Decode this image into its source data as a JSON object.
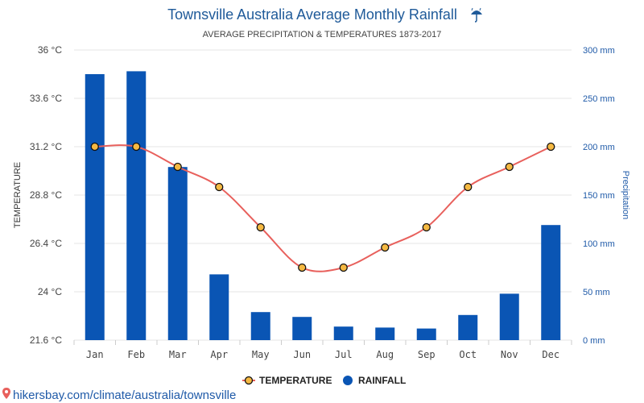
{
  "chart_data": {
    "type": "bar",
    "title": "Townsville Australia Average Monthly Rainfall",
    "title_icon": "umbrella-icon",
    "subtitle": "AVERAGE PRECIPITATION & TEMPERATURES 1873-2017",
    "categories": [
      "Jan",
      "Feb",
      "Mar",
      "Apr",
      "May",
      "Jun",
      "Jul",
      "Aug",
      "Sep",
      "Oct",
      "Nov",
      "Dec"
    ],
    "series": [
      {
        "name": "TEMPERATURE",
        "type": "line",
        "axis": "left",
        "color": "#e8605c",
        "marker_fill": "#f5b942",
        "values": [
          31.2,
          31.2,
          30.2,
          29.2,
          27.2,
          25.2,
          25.2,
          26.2,
          27.2,
          29.2,
          30.2,
          31.2
        ]
      },
      {
        "name": "RAINFALL",
        "type": "bar",
        "axis": "right",
        "color": "#0a55b4",
        "values": [
          275,
          278,
          179,
          68,
          29,
          24,
          14,
          13,
          12,
          26,
          48,
          119
        ]
      }
    ],
    "left_axis": {
      "title": "TEMPERATURE",
      "ylim": [
        21.6,
        36
      ],
      "ticks": [
        21.6,
        24,
        26.4,
        28.8,
        31.2,
        33.6,
        36
      ],
      "tick_labels": [
        "21.6 °C",
        "24 °C",
        "26.4 °C",
        "28.8 °C",
        "31.2 °C",
        "33.6 °C",
        "36 °C"
      ]
    },
    "right_axis": {
      "title": "Precipitation",
      "ylim": [
        0,
        300
      ],
      "ticks": [
        0,
        50,
        100,
        150,
        200,
        250,
        300
      ],
      "tick_labels": [
        "0 mm",
        "50 mm",
        "100 mm",
        "150 mm",
        "200 mm",
        "250 mm",
        "300 mm"
      ]
    },
    "grid": true,
    "legend_position": "bottom-center"
  },
  "footer": {
    "text": "hikersbay.com/climate/australia/townsville",
    "icon": "map-pin-icon"
  }
}
